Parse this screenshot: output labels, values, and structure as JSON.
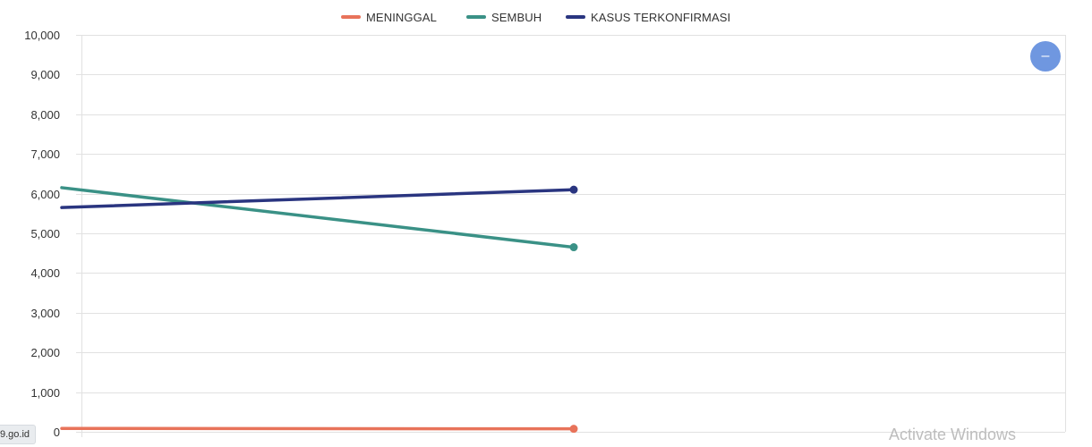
{
  "legend": {
    "items": [
      {
        "label": "MENINGGAL",
        "color": "#e8735a"
      },
      {
        "label": "SEMBUH",
        "color": "#3a9186"
      },
      {
        "label": "KASUS TERKONFIRMASI",
        "color": "#2a3580"
      }
    ]
  },
  "chart_data": {
    "type": "line",
    "ylim": [
      0,
      10000
    ],
    "y_ticks": [
      0,
      1000,
      2000,
      3000,
      4000,
      5000,
      6000,
      7000,
      8000,
      9000,
      10000
    ],
    "y_tick_labels": [
      "0",
      "1,000",
      "2,000",
      "3,000",
      "4,000",
      "5,000",
      "6,000",
      "7,000",
      "8,000",
      "9,000",
      "10,000"
    ],
    "grid": true,
    "legend_position": "top-center",
    "series": [
      {
        "name": "MENINGGAL",
        "color": "#e8735a",
        "points": [
          [
            -0.04,
            85
          ],
          [
            1,
            75
          ]
        ]
      },
      {
        "name": "SEMBUH",
        "color": "#3a9186",
        "points": [
          [
            -0.04,
            6150
          ],
          [
            1,
            4650
          ]
        ]
      },
      {
        "name": "KASUS TERKONFIRMASI",
        "color": "#2a3580",
        "points": [
          [
            -0.04,
            5650
          ],
          [
            1,
            6100
          ]
        ]
      }
    ]
  },
  "fab": {
    "icon": "minus-icon",
    "glyph": "–",
    "color": "#6f97e0"
  },
  "url_tag": {
    "text": "9.go.id"
  },
  "watermark": {
    "text": "Activate Windows"
  }
}
